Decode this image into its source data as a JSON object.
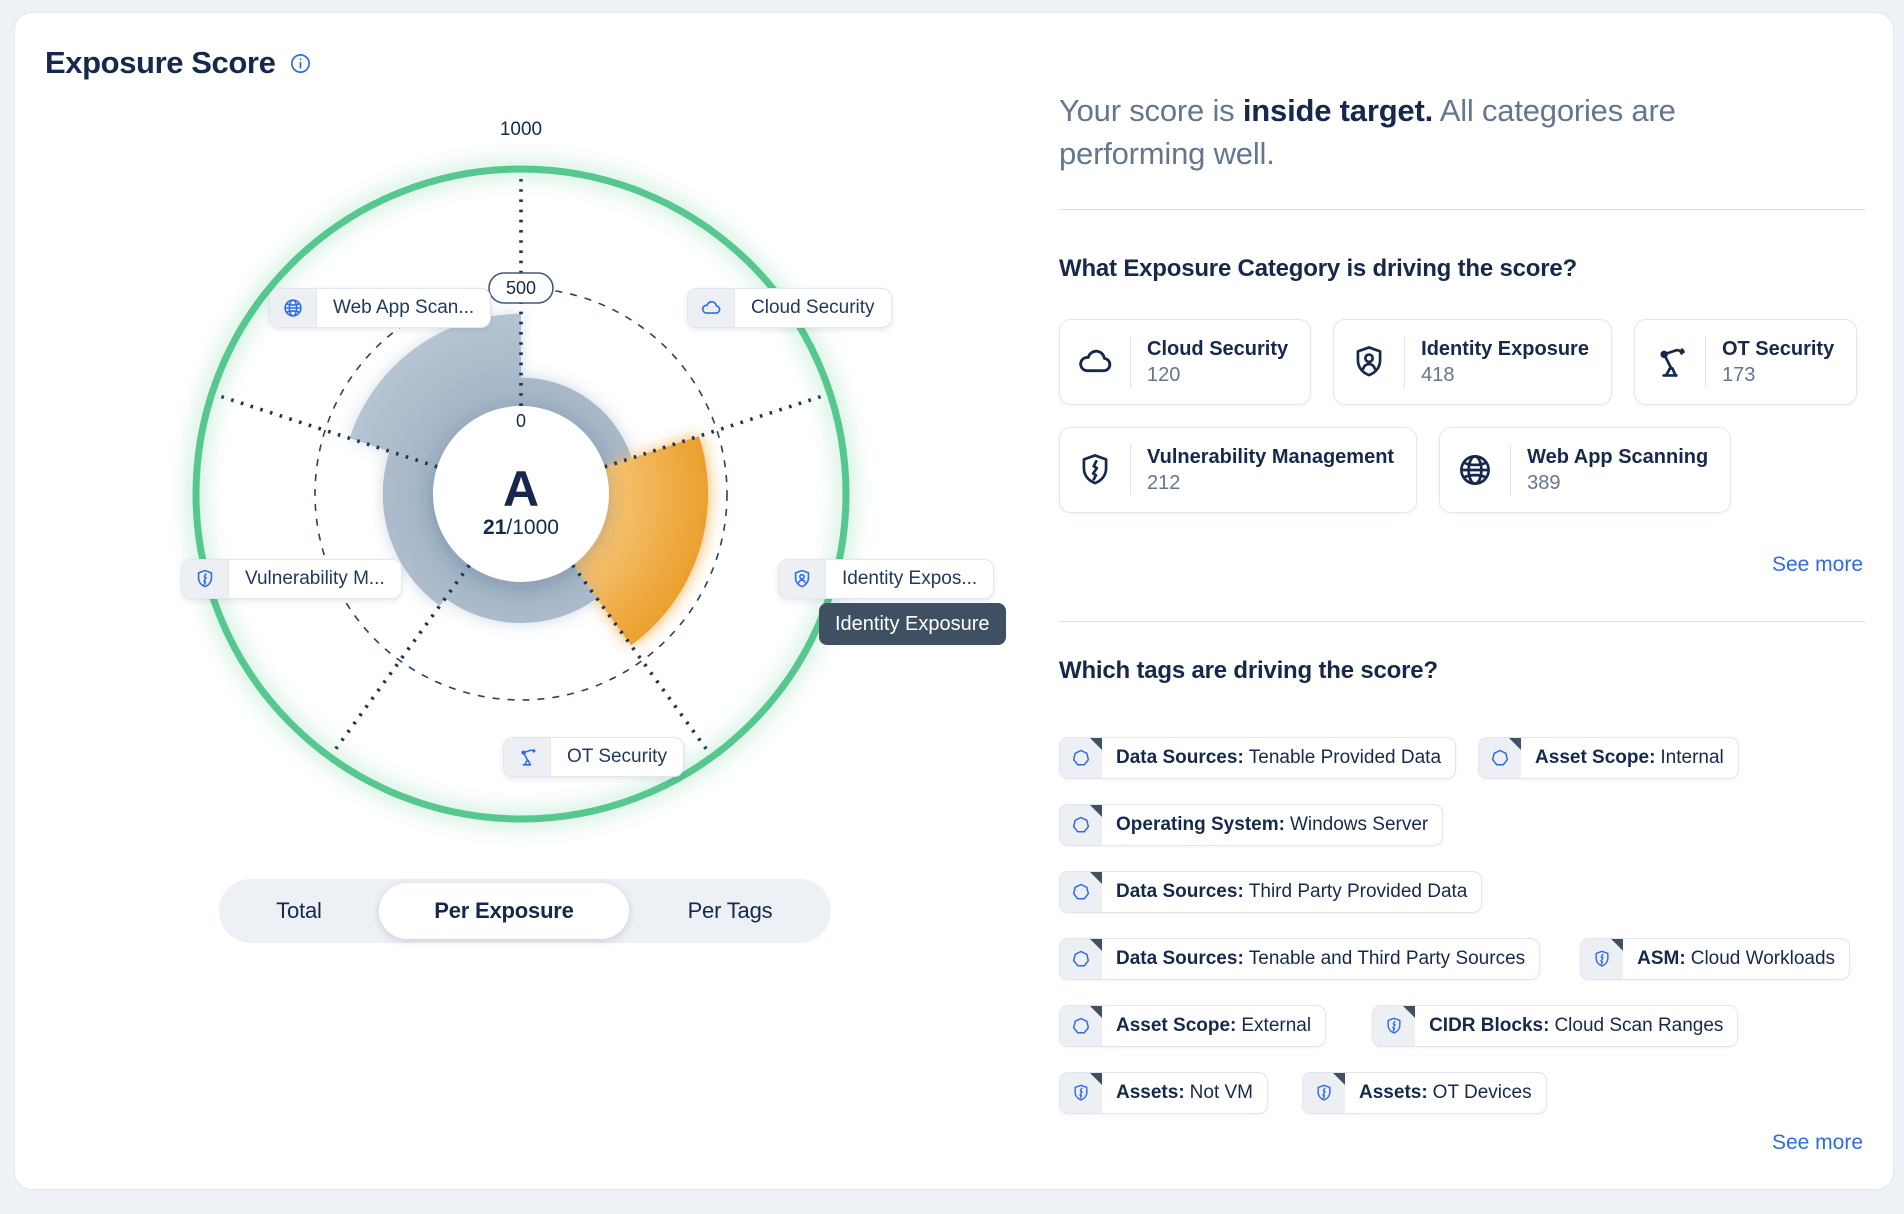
{
  "card": {
    "title": "Exposure Score",
    "info_icon": "info-icon"
  },
  "gauge": {
    "grade": "A",
    "score": "21",
    "score_suffix": "/1000",
    "axis": {
      "min": "0",
      "mid": "500",
      "max": "1000"
    },
    "tooltip": "Identity Exposure"
  },
  "chart_data": {
    "type": "radial-bar",
    "title": "Exposure Score",
    "max": 1000,
    "axis_ticks": [
      0,
      500,
      1000
    ],
    "categories": [
      "Cloud Security",
      "Identity Exposure",
      "OT Security",
      "Vulnerability Management",
      "Web App Scanning"
    ],
    "values": [
      120,
      418,
      173,
      212,
      389
    ],
    "highlighted": "Identity Exposure",
    "grade": "A",
    "total_score": 21,
    "target_ring": 1000,
    "legend_position": "around",
    "colors": {
      "sector_gray": "#a7b8c8",
      "highlight_orange": "#eb9f2c",
      "target_green": "#56c78d",
      "axis_navy": "#1d3557"
    }
  },
  "chart_labels": {
    "web_app_scanning": {
      "text": "Web App Scan...",
      "icon": "globe-icon"
    },
    "cloud_security": {
      "text": "Cloud Security",
      "icon": "cloud-icon"
    },
    "vulnerability_management": {
      "text": "Vulnerability M...",
      "icon": "shield-bolt-icon"
    },
    "identity_exposure": {
      "text": "Identity Expos...",
      "icon": "identity-shield-icon"
    },
    "ot_security": {
      "text": "OT Security",
      "icon": "robot-arm-icon"
    }
  },
  "view_toggle": {
    "options": [
      "Total",
      "Per Exposure",
      "Per Tags"
    ],
    "selected": "Per Exposure"
  },
  "summary": {
    "prefix": "Your score is ",
    "highlight": "inside target.",
    "suffix": " All categories are performing well."
  },
  "categories_section": {
    "heading": "What Exposure Category is driving the score?",
    "see_more": "See more",
    "cards": [
      {
        "label": "Cloud Security",
        "value": "120",
        "icon": "cloud-icon"
      },
      {
        "label": "Identity Exposure",
        "value": "418",
        "icon": "identity-shield-icon"
      },
      {
        "label": "OT Security",
        "value": "173",
        "icon": "robot-arm-icon"
      },
      {
        "label": "Vulnerability Management",
        "value": "212",
        "icon": "shield-bolt-icon"
      },
      {
        "label": "Web App Scanning",
        "value": "389",
        "icon": "globe-icon"
      }
    ]
  },
  "tags_section": {
    "heading": "Which tags are driving the score?",
    "see_more": "See more",
    "rows": [
      [
        {
          "label": "Data Sources:",
          "value": "Tenable Provided Data",
          "icon": "heptagon-icon"
        },
        {
          "label": "Asset Scope:",
          "value": "Internal",
          "icon": "heptagon-icon"
        }
      ],
      [
        {
          "label": "Operating System:",
          "value": "Windows Server",
          "icon": "heptagon-icon"
        }
      ],
      [
        {
          "label": "Data Sources:",
          "value": "Third Party Provided Data",
          "icon": "heptagon-icon"
        }
      ],
      [
        {
          "label": "Data Sources:",
          "value": "Tenable and Third Party Sources",
          "icon": "heptagon-icon"
        },
        {
          "label": "ASM:",
          "value": "Cloud Workloads",
          "icon": "shield-bolt-icon"
        }
      ],
      [
        {
          "label": "Asset Scope:",
          "value": "External",
          "icon": "heptagon-icon"
        },
        {
          "label": "CIDR Blocks:",
          "value": "Cloud Scan Ranges",
          "icon": "shield-bolt-icon"
        }
      ],
      [
        {
          "label": "Assets:",
          "value": "Not VM",
          "icon": "shield-bolt-icon"
        },
        {
          "label": "Assets:",
          "value": "OT Devices",
          "icon": "shield-bolt-icon"
        }
      ]
    ]
  },
  "colors": {
    "navy": "#16294d",
    "muted_blue_gray": "#64778f",
    "link_blue": "#2e6be6",
    "icon_blue": "#2e6be6",
    "tooltip_bg": "#3e5062",
    "target_green": "#56c78d",
    "highlight_orange": "#eb9f2c",
    "sector_gray": "#a7b8c8"
  }
}
